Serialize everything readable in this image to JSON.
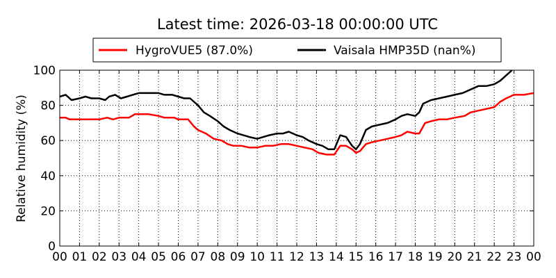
{
  "chart_data": {
    "type": "line",
    "title": "Latest time: 2026-03-18 00:00:00 UTC",
    "xlabel": "",
    "ylabel": "Relative humidity (%)",
    "xlim": [
      0,
      24
    ],
    "ylim": [
      0,
      100
    ],
    "grid": true,
    "legend_position": "top-center",
    "x_ticks": [
      "00",
      "01",
      "02",
      "03",
      "04",
      "05",
      "06",
      "07",
      "08",
      "09",
      "10",
      "11",
      "12",
      "13",
      "14",
      "15",
      "16",
      "17",
      "18",
      "19",
      "20",
      "21",
      "22",
      "23",
      "00"
    ],
    "y_ticks": [
      0,
      20,
      40,
      60,
      80,
      100
    ],
    "series": [
      {
        "name": "HygroVUE5 (87.0%)",
        "color": "#ff0000",
        "points": [
          [
            0.0,
            73
          ],
          [
            0.3,
            73
          ],
          [
            0.5,
            72
          ],
          [
            1.0,
            72
          ],
          [
            1.5,
            72
          ],
          [
            2.0,
            72
          ],
          [
            2.4,
            73
          ],
          [
            2.7,
            72
          ],
          [
            3.0,
            73
          ],
          [
            3.5,
            73
          ],
          [
            3.8,
            75
          ],
          [
            4.2,
            75
          ],
          [
            4.5,
            75
          ],
          [
            5.0,
            74
          ],
          [
            5.3,
            73
          ],
          [
            5.8,
            73
          ],
          [
            6.0,
            72
          ],
          [
            6.5,
            72
          ],
          [
            6.8,
            68
          ],
          [
            7.0,
            66
          ],
          [
            7.4,
            64
          ],
          [
            7.8,
            61
          ],
          [
            8.2,
            60
          ],
          [
            8.5,
            58
          ],
          [
            8.8,
            57
          ],
          [
            9.2,
            57
          ],
          [
            9.6,
            56
          ],
          [
            10.0,
            56
          ],
          [
            10.4,
            57
          ],
          [
            10.8,
            57
          ],
          [
            11.2,
            58
          ],
          [
            11.6,
            58
          ],
          [
            12.0,
            57
          ],
          [
            12.4,
            56
          ],
          [
            12.8,
            55
          ],
          [
            13.1,
            53
          ],
          [
            13.5,
            52
          ],
          [
            13.9,
            52
          ],
          [
            14.2,
            57
          ],
          [
            14.5,
            57
          ],
          [
            14.8,
            55
          ],
          [
            15.0,
            53
          ],
          [
            15.2,
            54
          ],
          [
            15.5,
            58
          ],
          [
            15.8,
            59
          ],
          [
            16.2,
            60
          ],
          [
            16.6,
            61
          ],
          [
            17.0,
            62
          ],
          [
            17.3,
            63
          ],
          [
            17.6,
            65
          ],
          [
            18.0,
            64
          ],
          [
            18.2,
            64
          ],
          [
            18.5,
            70
          ],
          [
            18.8,
            71
          ],
          [
            19.2,
            72
          ],
          [
            19.6,
            72
          ],
          [
            20.0,
            73
          ],
          [
            20.5,
            74
          ],
          [
            20.8,
            76
          ],
          [
            21.2,
            77
          ],
          [
            21.6,
            78
          ],
          [
            22.0,
            79
          ],
          [
            22.3,
            82
          ],
          [
            22.6,
            84
          ],
          [
            23.0,
            86
          ],
          [
            23.5,
            86
          ],
          [
            24.0,
            87
          ]
        ]
      },
      {
        "name": "Vaisala HMP35D (nan%)",
        "color": "#000000",
        "points": [
          [
            0.0,
            85
          ],
          [
            0.3,
            86
          ],
          [
            0.6,
            83
          ],
          [
            1.0,
            84
          ],
          [
            1.3,
            85
          ],
          [
            1.6,
            84
          ],
          [
            2.0,
            84
          ],
          [
            2.3,
            83
          ],
          [
            2.5,
            85
          ],
          [
            2.8,
            86
          ],
          [
            3.1,
            84
          ],
          [
            3.4,
            85
          ],
          [
            3.7,
            86
          ],
          [
            4.0,
            87
          ],
          [
            4.3,
            87
          ],
          [
            4.6,
            87
          ],
          [
            5.0,
            87
          ],
          [
            5.3,
            86
          ],
          [
            5.7,
            86
          ],
          [
            6.0,
            85
          ],
          [
            6.3,
            84
          ],
          [
            6.6,
            84
          ],
          [
            7.0,
            80
          ],
          [
            7.3,
            76
          ],
          [
            7.6,
            74
          ],
          [
            8.0,
            71
          ],
          [
            8.3,
            68
          ],
          [
            8.6,
            66
          ],
          [
            9.0,
            64
          ],
          [
            9.3,
            63
          ],
          [
            9.6,
            62
          ],
          [
            10.0,
            61
          ],
          [
            10.3,
            62
          ],
          [
            10.6,
            63
          ],
          [
            11.0,
            64
          ],
          [
            11.3,
            64
          ],
          [
            11.6,
            65
          ],
          [
            12.0,
            63
          ],
          [
            12.3,
            62
          ],
          [
            12.6,
            60
          ],
          [
            13.0,
            58
          ],
          [
            13.3,
            57
          ],
          [
            13.6,
            55
          ],
          [
            13.9,
            55
          ],
          [
            14.2,
            63
          ],
          [
            14.5,
            62
          ],
          [
            14.8,
            57
          ],
          [
            15.0,
            55
          ],
          [
            15.2,
            58
          ],
          [
            15.5,
            66
          ],
          [
            15.8,
            68
          ],
          [
            16.2,
            69
          ],
          [
            16.6,
            70
          ],
          [
            17.0,
            72
          ],
          [
            17.3,
            74
          ],
          [
            17.6,
            75
          ],
          [
            18.0,
            74
          ],
          [
            18.2,
            76
          ],
          [
            18.4,
            81
          ],
          [
            18.8,
            83
          ],
          [
            19.2,
            84
          ],
          [
            19.6,
            85
          ],
          [
            20.0,
            86
          ],
          [
            20.4,
            87
          ],
          [
            20.8,
            89
          ],
          [
            21.2,
            91
          ],
          [
            21.6,
            91
          ],
          [
            22.0,
            92
          ],
          [
            22.3,
            94
          ],
          [
            22.6,
            97
          ],
          [
            22.9,
            100
          ]
        ]
      }
    ]
  }
}
